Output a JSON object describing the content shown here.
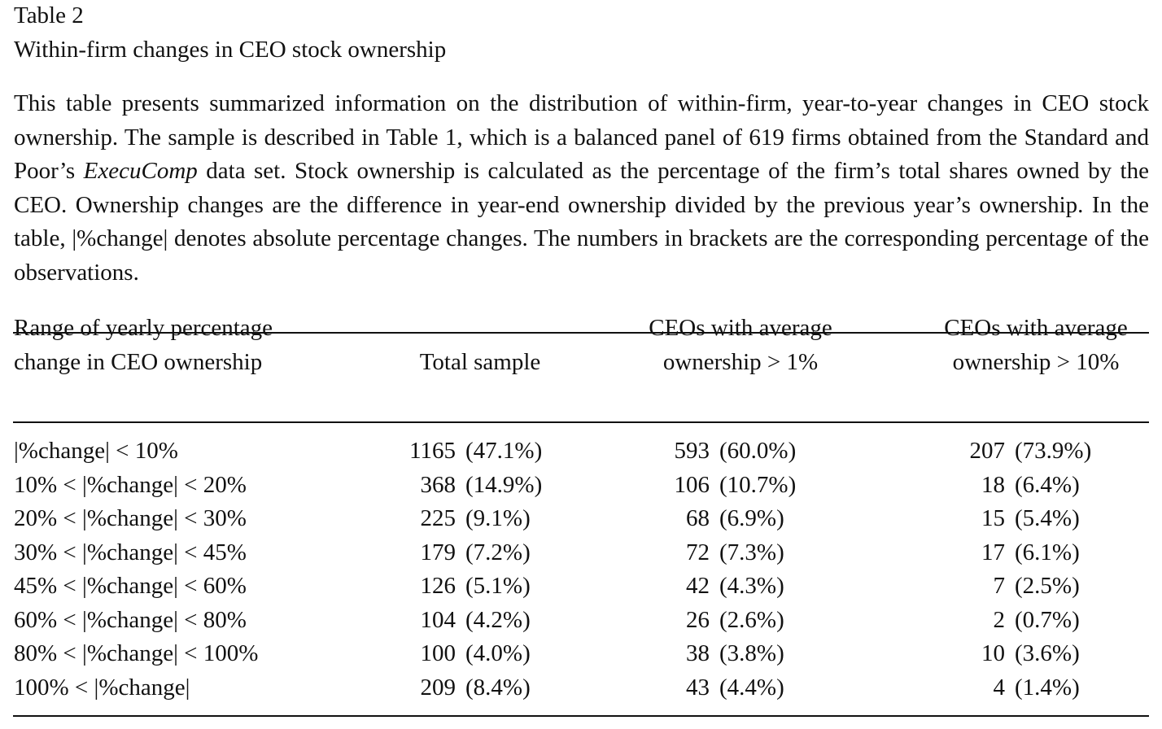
{
  "header": {
    "label": "Table 2",
    "title": "Within-firm changes in CEO stock ownership"
  },
  "caption": {
    "before": "This table presents summarized information on the distribution of within-firm, year-to-year changes in CEO stock ownership. The sample is described in Table 1, which is a balanced panel of 619 firms obtained from the Standard and Poor’s ",
    "italic": "ExecuComp",
    "after": " data set. Stock ownership is calculated as the percentage of the firm’s total shares owned by the CEO. Ownership changes are the difference in year-end ownership divided by the previous year’s ownership. In the table, |%change| denotes absolute percentage changes. The numbers in brackets are the corresponding percentage of the observations."
  },
  "table": {
    "columns": [
      [
        "Range of yearly percentage",
        "change in CEO ownership"
      ],
      [
        "Total sample"
      ],
      [
        "CEOs with average",
        "ownership > 1%"
      ],
      [
        "CEOs with average",
        "ownership > 10%"
      ]
    ],
    "rows": [
      {
        "label": "|%change| < 10%",
        "cells": [
          [
            "1165",
            "(47.1%)"
          ],
          [
            "593",
            "(60.0%)"
          ],
          [
            "207",
            "(73.9%)"
          ]
        ]
      },
      {
        "label": "10% < |%change| < 20%",
        "cells": [
          [
            "368",
            "(14.9%)"
          ],
          [
            "106",
            "(10.7%)"
          ],
          [
            "18",
            "(6.4%)"
          ]
        ]
      },
      {
        "label": "20% < |%change| < 30%",
        "cells": [
          [
            "225",
            "(9.1%)"
          ],
          [
            "68",
            "(6.9%)"
          ],
          [
            "15",
            "(5.4%)"
          ]
        ]
      },
      {
        "label": "30% < |%change| < 45%",
        "cells": [
          [
            "179",
            "(7.2%)"
          ],
          [
            "72",
            "(7.3%)"
          ],
          [
            "17",
            "(6.1%)"
          ]
        ]
      },
      {
        "label": "45% < |%change| < 60%",
        "cells": [
          [
            "126",
            "(5.1%)"
          ],
          [
            "42",
            "(4.3%)"
          ],
          [
            "7",
            "(2.5%)"
          ]
        ]
      },
      {
        "label": "60% < |%change| < 80%",
        "cells": [
          [
            "104",
            "(4.2%)"
          ],
          [
            "26",
            "(2.6%)"
          ],
          [
            "2",
            "(0.7%)"
          ]
        ]
      },
      {
        "label": "80% < |%change| < 100%",
        "cells": [
          [
            "100",
            "(4.0%)"
          ],
          [
            "38",
            "(3.8%)"
          ],
          [
            "10",
            "(3.6%)"
          ]
        ]
      },
      {
        "label": "100% < |%change|",
        "cells": [
          [
            "209",
            "(8.4%)"
          ],
          [
            "43",
            "(4.4%)"
          ],
          [
            "4",
            "(1.4%)"
          ]
        ]
      }
    ]
  }
}
